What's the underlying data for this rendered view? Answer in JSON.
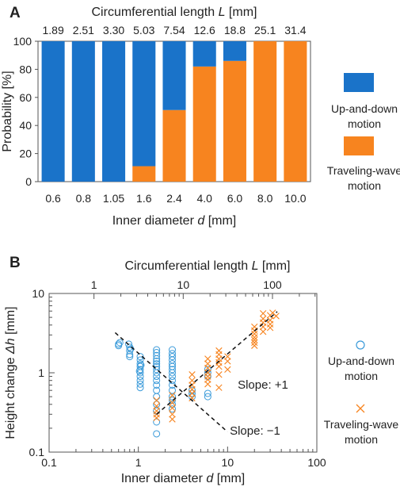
{
  "panels": {
    "a": {
      "letter": "A"
    },
    "b": {
      "letter": "B"
    }
  },
  "colors": {
    "up_and_down": "#1a73c9",
    "traveling_wave": "#f7841f",
    "text": "#222222",
    "axis": "#555555",
    "guide": "#111111"
  },
  "chart_data": [
    {
      "type": "bar",
      "stacked": true,
      "categories": [
        "0.6",
        "0.8",
        "1.05",
        "1.6",
        "2.4",
        "4.0",
        "6.0",
        "8.0",
        "10.0"
      ],
      "top_categories": [
        "1.89",
        "2.51",
        "3.30",
        "5.03",
        "7.54",
        "12.6",
        "18.8",
        "25.1",
        "31.4"
      ],
      "series": [
        {
          "name": "Up-and-down motion",
          "name_lines": [
            "Up-and-down",
            "motion"
          ],
          "values": [
            100,
            100,
            100,
            89,
            49,
            18,
            14,
            0,
            0
          ]
        },
        {
          "name": "Traveling-wave motion",
          "name_lines": [
            "Traveling-wave",
            "motion"
          ],
          "values": [
            0,
            0,
            0,
            11,
            51,
            82,
            86,
            100,
            100
          ]
        }
      ],
      "xlabel": {
        "pre": "Inner diameter ",
        "var": "d",
        "post": " [mm]"
      },
      "x2label": {
        "pre": "Circumferential length ",
        "var": "L",
        "post": " [mm]"
      },
      "ylabel": "Probability [%]",
      "ylim": [
        0,
        100
      ],
      "yticks": [
        0,
        20,
        40,
        60,
        80,
        100
      ],
      "legend": "right"
    },
    {
      "type": "scatter",
      "xscale": "log",
      "yscale": "log",
      "xlim": [
        0.1,
        100
      ],
      "ylim": [
        0.1,
        10
      ],
      "xticks": [
        0.1,
        1,
        10,
        100
      ],
      "xtick_labels": [
        "0.1",
        "1",
        "10",
        "100"
      ],
      "yticks": [
        0.1,
        1,
        10
      ],
      "ytick_labels": [
        "0.1",
        "1",
        "10"
      ],
      "x2ticks": [
        1,
        10,
        100
      ],
      "x2tick_labels": [
        "1",
        "10",
        "100"
      ],
      "xlabel": {
        "pre": "Inner diameter ",
        "var": "d",
        "post": " [mm]"
      },
      "x2label": {
        "pre": "Circumferential length ",
        "var": "L",
        "post": " [mm]"
      },
      "ylabel": {
        "pre": "Height change ",
        "var": "Δh",
        "post": " [mm]"
      },
      "legend": "right",
      "series": [
        {
          "name": "Up-and-down motion",
          "name_lines": [
            "Up-and-down",
            "motion"
          ],
          "marker": "circle",
          "points": [
            [
              0.6,
              2.3
            ],
            [
              0.6,
              2.2
            ],
            [
              0.62,
              2.4
            ],
            [
              0.78,
              2.3
            ],
            [
              0.8,
              2.1
            ],
            [
              0.8,
              1.9
            ],
            [
              0.8,
              1.7
            ],
            [
              0.8,
              1.6
            ],
            [
              0.82,
              2.0
            ],
            [
              1.05,
              1.6
            ],
            [
              1.05,
              1.45
            ],
            [
              1.05,
              1.3
            ],
            [
              1.05,
              1.2
            ],
            [
              1.05,
              1.1
            ],
            [
              1.05,
              1.0
            ],
            [
              1.05,
              0.9
            ],
            [
              1.05,
              0.8
            ],
            [
              1.05,
              0.72
            ],
            [
              1.05,
              0.65
            ],
            [
              1.07,
              1.25
            ],
            [
              1.03,
              1.05
            ],
            [
              1.6,
              1.95
            ],
            [
              1.6,
              1.8
            ],
            [
              1.6,
              1.65
            ],
            [
              1.6,
              1.5
            ],
            [
              1.6,
              1.4
            ],
            [
              1.6,
              1.3
            ],
            [
              1.6,
              1.2
            ],
            [
              1.6,
              1.1
            ],
            [
              1.6,
              1.0
            ],
            [
              1.6,
              0.9
            ],
            [
              1.6,
              0.8
            ],
            [
              1.6,
              0.7
            ],
            [
              1.6,
              0.6
            ],
            [
              1.6,
              0.5
            ],
            [
              1.6,
              0.4
            ],
            [
              1.6,
              0.33
            ],
            [
              1.6,
              0.24
            ],
            [
              1.6,
              0.17
            ],
            [
              2.4,
              1.95
            ],
            [
              2.4,
              1.75
            ],
            [
              2.4,
              1.6
            ],
            [
              2.4,
              1.45
            ],
            [
              2.4,
              1.3
            ],
            [
              2.4,
              1.2
            ],
            [
              2.4,
              1.1
            ],
            [
              2.4,
              1.0
            ],
            [
              2.4,
              0.9
            ],
            [
              2.4,
              0.8
            ],
            [
              2.4,
              0.7
            ],
            [
              2.4,
              0.6
            ],
            [
              2.4,
              0.5
            ],
            [
              2.4,
              0.45
            ],
            [
              2.4,
              0.4
            ],
            [
              2.4,
              0.35
            ],
            [
              4.0,
              0.6
            ],
            [
              4.0,
              0.5
            ],
            [
              4.0,
              0.55
            ],
            [
              6.0,
              1.1
            ],
            [
              6.0,
              1.0
            ],
            [
              6.0,
              0.9
            ],
            [
              6.0,
              0.55
            ],
            [
              6.0,
              0.5
            ]
          ]
        },
        {
          "name": "Traveling-wave motion",
          "name_lines": [
            "Traveling-wave",
            "motion"
          ],
          "marker": "x",
          "points": [
            [
              1.6,
              0.45
            ],
            [
              1.6,
              0.38
            ],
            [
              1.6,
              0.33
            ],
            [
              1.6,
              0.3
            ],
            [
              1.6,
              0.27
            ],
            [
              2.4,
              0.52
            ],
            [
              2.4,
              0.42
            ],
            [
              2.4,
              0.36
            ],
            [
              2.4,
              0.3
            ],
            [
              2.4,
              0.26
            ],
            [
              4.0,
              0.95
            ],
            [
              4.0,
              0.8
            ],
            [
              4.0,
              0.7
            ],
            [
              4.0,
              0.62
            ],
            [
              4.0,
              0.55
            ],
            [
              4.0,
              0.48
            ],
            [
              6.0,
              1.5
            ],
            [
              6.0,
              1.3
            ],
            [
              6.0,
              1.15
            ],
            [
              6.0,
              1.0
            ],
            [
              6.0,
              0.9
            ],
            [
              6.0,
              0.82
            ],
            [
              6.0,
              0.72
            ],
            [
              8.0,
              1.9
            ],
            [
              8.0,
              1.7
            ],
            [
              8.0,
              1.5
            ],
            [
              8.0,
              1.35
            ],
            [
              8.0,
              1.2
            ],
            [
              8.0,
              0.95
            ],
            [
              8.0,
              0.65
            ],
            [
              10.0,
              1.6
            ],
            [
              10.0,
              1.4
            ],
            [
              10.0,
              1.1
            ],
            [
              20.0,
              3.8
            ],
            [
              20.0,
              3.4
            ],
            [
              20.0,
              3.1
            ],
            [
              20.0,
              2.8
            ],
            [
              20.0,
              2.6
            ],
            [
              20.0,
              2.4
            ],
            [
              20.0,
              2.2
            ],
            [
              25.0,
              5.6
            ],
            [
              25.0,
              4.8
            ],
            [
              25.0,
              4.3
            ],
            [
              25.0,
              3.8
            ],
            [
              25.0,
              3.3
            ],
            [
              30.0,
              5.3
            ],
            [
              30.0,
              4.6
            ],
            [
              30.0,
              4.1
            ],
            [
              30.0,
              3.7
            ],
            [
              32.0,
              5.7
            ],
            [
              35.0,
              5.2
            ]
          ]
        }
      ],
      "guide_lines": [
        {
          "slope": -1,
          "label": "Slope: −1",
          "from": [
            0.55,
            3.2
          ],
          "to": [
            10,
            0.18
          ]
        },
        {
          "slope": 1,
          "label": "Slope: +1",
          "from": [
            1.6,
            0.3
          ],
          "to": [
            36,
            5.9
          ]
        }
      ]
    }
  ]
}
